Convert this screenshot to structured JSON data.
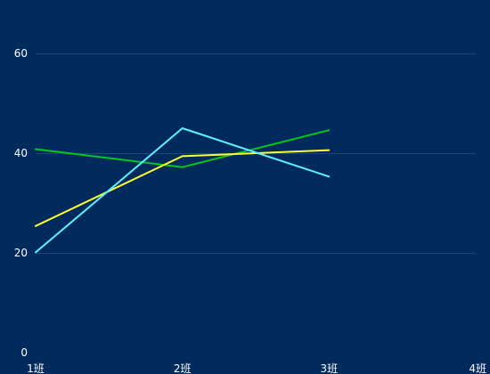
{
  "chart_data": {
    "type": "line",
    "title": "",
    "xlabel": "",
    "ylabel": "",
    "categories": [
      "1班",
      "2班",
      "3班",
      "4班"
    ],
    "ylim": [
      0,
      60
    ],
    "yticks": [
      0,
      20,
      40,
      60
    ],
    "grid": true,
    "legend": "none",
    "background": "#002b5c",
    "series": [
      {
        "color": "#00c81e",
        "values": [
          40.8,
          37.2,
          44.6,
          null
        ]
      },
      {
        "color": "#ffff33",
        "values": [
          25.4,
          39.4,
          40.6,
          null
        ]
      },
      {
        "color": "#5ff1ff",
        "values": [
          20.1,
          45.0,
          35.3,
          null
        ]
      }
    ]
  }
}
